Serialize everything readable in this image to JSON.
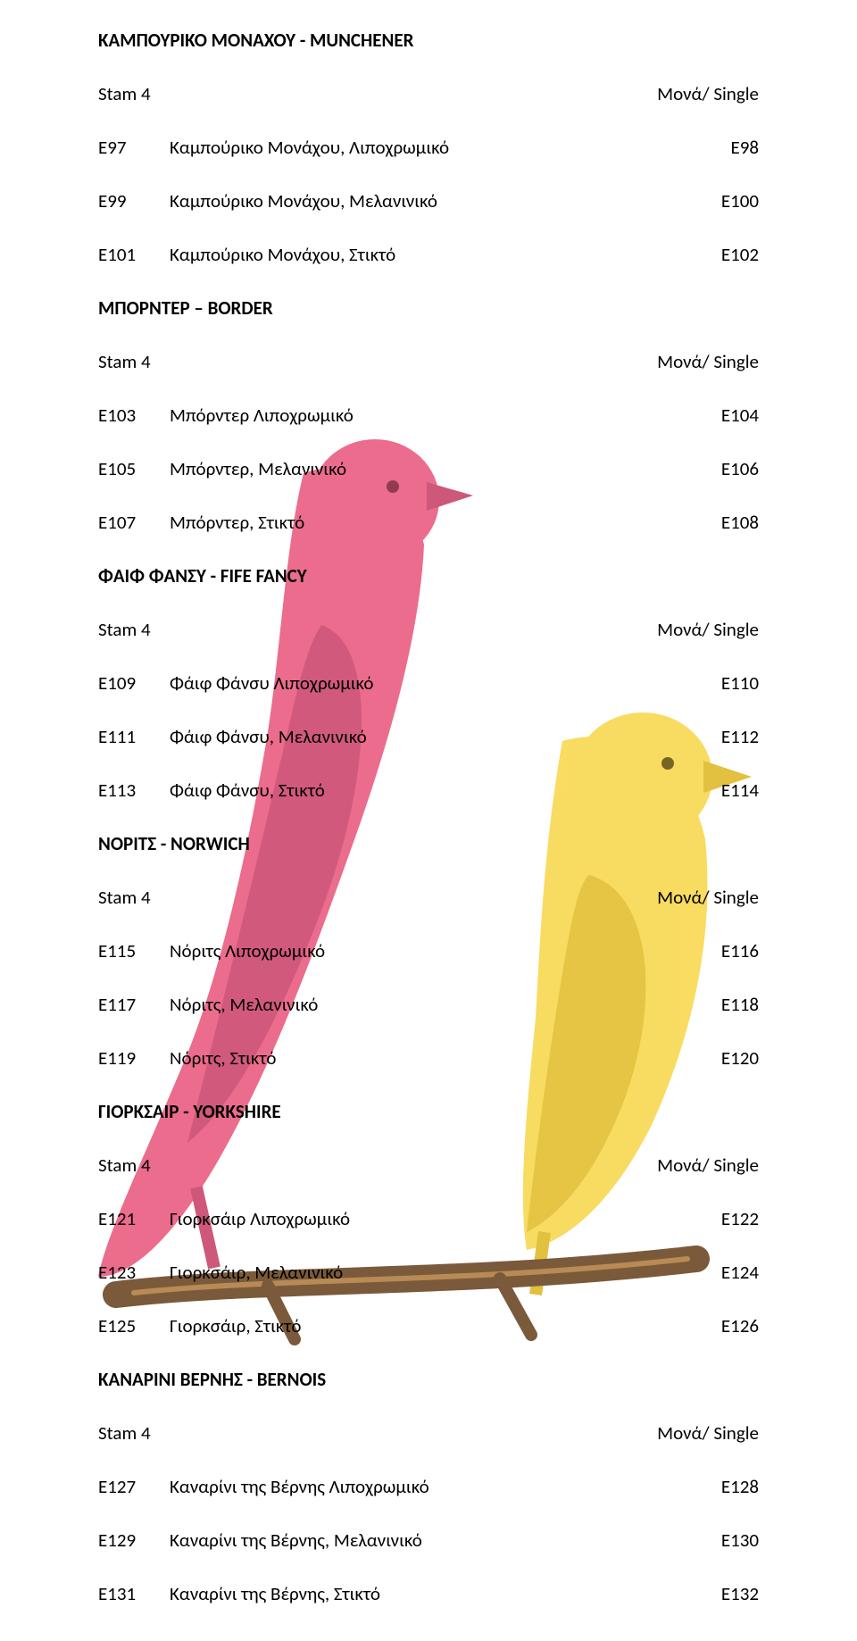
{
  "bg": {
    "pink": "#ea6083",
    "pink_dark": "#c94a6e",
    "yellow": "#f8d954",
    "yellow_dark": "#e0bb30",
    "branch": "#7a5a3a",
    "branch_line": "#b88a55"
  },
  "labels": {
    "stam": "Stam 4",
    "mona": "Μονά/ Single"
  },
  "sections": [
    {
      "title": "ΚΑΜΠΟΥΡΙΚΟ ΜΟΝΑΧΟΥ - MUNCHENER",
      "rows": [
        {
          "lc": "E97",
          "txt": "Καμπούρικο Μονάχου, Λιποχρωμικό",
          "rc": "E98"
        },
        {
          "lc": "E99",
          "txt": "Καμπούρικο Μονάχου, Μελανινικό",
          "rc": "E100"
        },
        {
          "lc": "E101",
          "txt": "Καμπούρικο Μονάχου, Στικτό",
          "rc": "E102"
        }
      ]
    },
    {
      "title": "ΜΠΟΡΝΤΕΡ – BORDER",
      "rows": [
        {
          "lc": "E103",
          "txt": "Μπόρντερ Λιποχρωμικό",
          "rc": "E104"
        },
        {
          "lc": "E105",
          "txt": "Μπόρντερ, Μελανινικό",
          "rc": "E106"
        },
        {
          "lc": "E107",
          "txt": "Μπόρντερ, Στικτό",
          "rc": "E108"
        }
      ]
    },
    {
      "title": "ΦΑΙΦ ΦΑΝΣΥ - FIFE FANCY",
      "rows": [
        {
          "lc": "E109",
          "txt": "Φάιφ Φάνσυ Λιποχρωμικό",
          "rc": "E110"
        },
        {
          "lc": "E111",
          "txt": "Φάιφ Φάνσυ, Μελανινικό",
          "rc": "E112"
        },
        {
          "lc": "E113",
          "txt": "Φάιφ Φάνσυ, Στικτό",
          "rc": "E114"
        }
      ]
    },
    {
      "title": "ΝΟΡΙΤΣ - NORWICH",
      "rows": [
        {
          "lc": "E115",
          "txt": "Νόριτς Λιποχρωμικό",
          "rc": "E116"
        },
        {
          "lc": "E117",
          "txt": "Νόριτς, Μελανινικό",
          "rc": "E118"
        },
        {
          "lc": "E119",
          "txt": "Νόριτς, Στικτό",
          "rc": "E120"
        }
      ]
    },
    {
      "title": "ΓΙΟΡΚΣΑΙΡ - YORKSHIRE",
      "rows": [
        {
          "lc": "E121",
          "txt": "Γιορκσάιρ Λιποχρωμικό",
          "rc": "E122"
        },
        {
          "lc": "E123",
          "txt": "Γιορκσάιρ, Μελανινικό",
          "rc": "E124"
        },
        {
          "lc": "E125",
          "txt": "Γιορκσάιρ, Στικτό",
          "rc": "E126"
        }
      ]
    },
    {
      "title": "ΚΑΝΑΡΙΝΙ ΒΕΡΝΗΣ - BERNOIS",
      "rows": [
        {
          "lc": "E127",
          "txt": "Καναρίνι της Βέρνης Λιποχρωμικό",
          "rc": "E128"
        },
        {
          "lc": "E129",
          "txt": "Καναρίνι της Βέρνης, Μελανινικό",
          "rc": "E130"
        },
        {
          "lc": "E131",
          "txt": "Καναρίνι της Βέρνης, Στικτό",
          "rc": "E132"
        }
      ]
    }
  ]
}
